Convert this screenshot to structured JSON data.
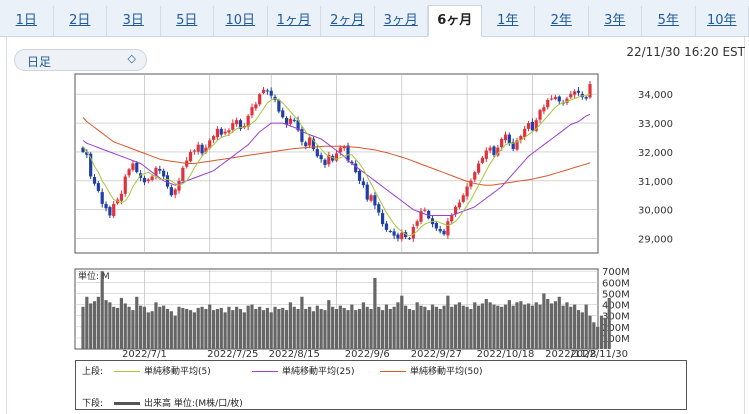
{
  "tabs": [
    {
      "label": "1日",
      "active": false
    },
    {
      "label": "2日",
      "active": false
    },
    {
      "label": "3日",
      "active": false
    },
    {
      "label": "5日",
      "active": false
    },
    {
      "label": "10日",
      "active": false
    },
    {
      "label": "1ヶ月",
      "active": false
    },
    {
      "label": "2ヶ月",
      "active": false
    },
    {
      "label": "3ヶ月",
      "active": false
    },
    {
      "label": "6ヶ月",
      "active": true
    },
    {
      "label": "1年",
      "active": false
    },
    {
      "label": "2年",
      "active": false
    },
    {
      "label": "3年",
      "active": false
    },
    {
      "label": "5年",
      "active": false
    },
    {
      "label": "10年",
      "active": false
    }
  ],
  "period_select": {
    "value": "日足",
    "icon": "updown-chevron-icon"
  },
  "timestamp": "22/11/30 16:20 EST",
  "chart_data": [
    {
      "type": "candlestick",
      "ylim": [
        28500,
        34700
      ],
      "yticks": [
        "34,000",
        "33,000",
        "32,000",
        "31,000",
        "30,000",
        "29,000"
      ],
      "ytick_values": [
        34000,
        33000,
        32000,
        31000,
        30000,
        29000
      ],
      "colors": {
        "up": "#e0323c",
        "down": "#1f3fa6",
        "ma5": "#a6c73c",
        "ma25": "#9b3fd1",
        "ma50": "#d8572a"
      },
      "close": [
        32000,
        31900,
        31150,
        30900,
        30650,
        30200,
        30050,
        29800,
        30200,
        30350,
        30550,
        31150,
        31400,
        31600,
        31300,
        31100,
        30950,
        31050,
        31150,
        31450,
        31350,
        31150,
        30800,
        30500,
        30700,
        31000,
        31450,
        31700,
        32000,
        32050,
        32250,
        31950,
        32150,
        32400,
        32550,
        32800,
        32600,
        32700,
        32750,
        33000,
        33100,
        32800,
        32900,
        33250,
        33550,
        33650,
        34000,
        34150,
        34100,
        33950,
        33800,
        33400,
        33200,
        32950,
        33150,
        33100,
        32750,
        32350,
        32200,
        32500,
        32100,
        31850,
        31750,
        31550,
        31900,
        31700,
        31950,
        32150,
        32200,
        31700,
        31600,
        31300,
        31000,
        30850,
        30350,
        30500,
        30150,
        29900,
        29500,
        29300,
        29250,
        29100,
        29000,
        29200,
        29050,
        29000,
        29400,
        29600,
        29950,
        30000,
        29700,
        29500,
        29350,
        29250,
        29150,
        29600,
        29800,
        30100,
        30250,
        30500,
        30800,
        31000,
        31300,
        31600,
        31800,
        32050,
        32150,
        31900,
        32150,
        32450,
        32600,
        32300,
        32100,
        32400,
        32550,
        32800,
        33000,
        32750,
        33100,
        33450,
        33550,
        33800,
        33850,
        33900,
        33750,
        33700,
        33850,
        34000,
        34100,
        34050,
        33900,
        33850,
        34350
      ],
      "ma5": [
        32200,
        32000,
        31800,
        31500,
        31300,
        31000,
        30800,
        30550,
        30350,
        30300,
        30250,
        30300,
        30500,
        30800,
        31000,
        31200,
        31250,
        31300,
        31200,
        31150,
        31050,
        31050,
        31050,
        31000,
        30900,
        30850,
        30900,
        31000,
        31200,
        31450,
        31650,
        31850,
        32000,
        32150,
        32250,
        32400,
        32500,
        32550,
        32600,
        32700,
        32800,
        32850,
        32850,
        32900,
        33000,
        33100,
        33300,
        33500,
        33700,
        33800,
        33850,
        33800,
        33700,
        33550,
        33400,
        33250,
        33100,
        32900,
        32700,
        32550,
        32400,
        32250,
        32100,
        31950,
        31850,
        31800,
        31750,
        31800,
        31850,
        31900,
        31900,
        31750,
        31600,
        31400,
        31150,
        30900,
        30650,
        30400,
        30150,
        29900,
        29700,
        29500,
        29350,
        29250,
        29150,
        29100,
        29150,
        29250,
        29400,
        29500,
        29550,
        29600,
        29600,
        29550,
        29500,
        29450,
        29500,
        29600,
        29750,
        29950,
        30150,
        30350,
        30600,
        30850,
        31100,
        31350,
        31600,
        31800,
        31950,
        32100,
        32250,
        32300,
        32300,
        32350,
        32400,
        32500,
        32600,
        32700,
        32800,
        32950,
        33100,
        33250,
        33400,
        33550,
        33650,
        33700,
        33750,
        33800,
        33850,
        33900,
        33950,
        33950,
        34000
      ],
      "ma25": [
        32400,
        32300,
        32250,
        32200,
        32150,
        32100,
        32050,
        32000,
        31950,
        31900,
        31850,
        31800,
        31750,
        31700,
        31650,
        31600,
        31500,
        31400,
        31300,
        31200,
        31100,
        31000,
        30950,
        30900,
        30850,
        30900,
        30950,
        31000,
        31050,
        31100,
        31150,
        31200,
        31250,
        31300,
        31350,
        31450,
        31550,
        31650,
        31750,
        31850,
        31950,
        32050,
        32150,
        32250,
        32400,
        32550,
        32700,
        32800,
        32900,
        33000,
        33000,
        33000,
        33000,
        32950,
        32900,
        32850,
        32800,
        32700,
        32650,
        32600,
        32550,
        32500,
        32450,
        32350,
        32250,
        32150,
        32050,
        31950,
        31850,
        31700,
        31600,
        31500,
        31400,
        31300,
        31200,
        31100,
        31000,
        30900,
        30800,
        30700,
        30600,
        30500,
        30400,
        30300,
        30200,
        30100,
        30000,
        29950,
        29900,
        29850,
        29800,
        29800,
        29800,
        29800,
        29800,
        29800,
        29800,
        29850,
        29900,
        29950,
        30000,
        30050,
        30100,
        30200,
        30300,
        30400,
        30500,
        30600,
        30700,
        30800,
        30950,
        31100,
        31250,
        31400,
        31550,
        31700,
        31850,
        31950,
        32050,
        32150,
        32250,
        32350,
        32450,
        32550,
        32650,
        32750,
        32850,
        32950,
        33000,
        33050,
        33150,
        33250,
        33300
      ],
      "ma50": [
        33200,
        33050,
        32950,
        32850,
        32750,
        32650,
        32550,
        32450,
        32350,
        32300,
        32250,
        32200,
        32150,
        32100,
        32050,
        32000,
        31950,
        31900,
        31850,
        31800,
        31750,
        31720,
        31700,
        31680,
        31660,
        31640,
        31620,
        31600,
        31600,
        31600,
        31620,
        31640,
        31660,
        31680,
        31700,
        31720,
        31740,
        31760,
        31780,
        31800,
        31820,
        31840,
        31860,
        31880,
        31900,
        31920,
        31940,
        31960,
        31980,
        32000,
        32020,
        32040,
        32060,
        32080,
        32100,
        32120,
        32130,
        32140,
        32150,
        32160,
        32170,
        32180,
        32190,
        32200,
        32200,
        32200,
        32200,
        32200,
        32190,
        32180,
        32170,
        32160,
        32150,
        32130,
        32110,
        32090,
        32070,
        32040,
        32010,
        31980,
        31940,
        31900,
        31860,
        31820,
        31780,
        31730,
        31680,
        31630,
        31580,
        31530,
        31480,
        31430,
        31380,
        31330,
        31280,
        31230,
        31180,
        31130,
        31080,
        31030,
        30980,
        30940,
        30910,
        30880,
        30860,
        30850,
        30850,
        30860,
        30880,
        30900,
        30920,
        30940,
        30960,
        30980,
        31000,
        31020,
        31040,
        31060,
        31090,
        31120,
        31150,
        31180,
        31220,
        31260,
        31300,
        31340,
        31380,
        31420,
        31460,
        31500,
        31540,
        31580,
        31620
      ],
      "xlabels": [
        "2022/7/1",
        "2022/7/25",
        "2022/8/15",
        "2022/9/6",
        "2022/9/27",
        "2022/10/18",
        "2022/11/8",
        "2022/11/30"
      ],
      "xlabel_index": [
        16,
        39,
        55,
        74,
        92,
        110,
        127,
        131
      ],
      "vgrid_index": [
        16,
        33,
        49,
        66,
        83,
        100,
        117
      ]
    },
    {
      "type": "bar",
      "title": "単位: M",
      "ylim": [
        0,
        720
      ],
      "yticks": [
        "700M",
        "600M",
        "500M",
        "400M",
        "300M",
        "200M",
        "100M"
      ],
      "ytick_values": [
        700,
        600,
        500,
        400,
        300,
        200,
        100
      ],
      "values": [
        380,
        470,
        410,
        430,
        470,
        700,
        440,
        420,
        380,
        370,
        460,
        410,
        380,
        350,
        470,
        390,
        380,
        330,
        340,
        420,
        380,
        390,
        360,
        340,
        300,
        380,
        370,
        360,
        350,
        330,
        370,
        380,
        360,
        400,
        350,
        360,
        370,
        330,
        380,
        350,
        380,
        360,
        330,
        390,
        400,
        360,
        380,
        350,
        370,
        330,
        380,
        360,
        370,
        350,
        420,
        380,
        360,
        470,
        360,
        380,
        340,
        390,
        360,
        350,
        440,
        380,
        360,
        390,
        370,
        350,
        400,
        350,
        360,
        420,
        380,
        360,
        640,
        380,
        350,
        400,
        360,
        380,
        420,
        480,
        390,
        360,
        350,
        420,
        390,
        380,
        350,
        400,
        380,
        360,
        390,
        480,
        380,
        400,
        420,
        390,
        380,
        360,
        420,
        390,
        410,
        450,
        420,
        400,
        390,
        380,
        400,
        440,
        390,
        420,
        430,
        400,
        410,
        390,
        420,
        400,
        500,
        450,
        410,
        430,
        470,
        390,
        420,
        380,
        400,
        350,
        330,
        400,
        300,
        240,
        200,
        300,
        280,
        460
      ]
    }
  ],
  "legend": {
    "upper_label": "上段:",
    "lower_label": "下段:",
    "items": [
      {
        "text": "単純移動平均(5)",
        "color": "#a6c73c"
      },
      {
        "text": "単純移動平均(25)",
        "color": "#9b3fd1"
      },
      {
        "text": "単純移動平均(50)",
        "color": "#d8572a"
      }
    ],
    "volume_text": "出来高 単位:(M株/口/枚)",
    "volume_color": "#555555"
  }
}
